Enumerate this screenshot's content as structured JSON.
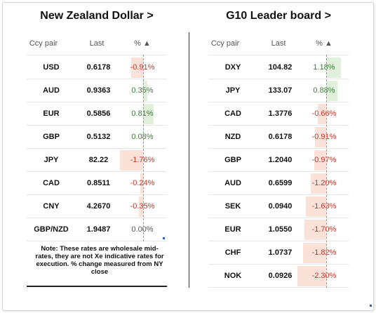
{
  "nzd_panel": {
    "title": "New Zealand Dollar >",
    "headers": {
      "pair": "Ccy pair",
      "last": "Last",
      "pct": "% ▲"
    },
    "rows": [
      {
        "pair": "USD",
        "last": "0.6178",
        "pct": "-0.91%",
        "change": -0.91
      },
      {
        "pair": "AUD",
        "last": "0.9363",
        "pct": "0.35%",
        "change": 0.35
      },
      {
        "pair": "EUR",
        "last": "0.5856",
        "pct": "0.81%",
        "change": 0.81
      },
      {
        "pair": "GBP",
        "last": "0.5132",
        "pct": "0.08%",
        "change": 0.08
      },
      {
        "pair": "JPY",
        "last": "82.22",
        "pct": "-1.76%",
        "change": -1.76
      },
      {
        "pair": "CAD",
        "last": "0.8511",
        "pct": "-0.24%",
        "change": -0.24
      },
      {
        "pair": "CNY",
        "last": "4.2670",
        "pct": "-0.35%",
        "change": -0.35
      },
      {
        "pair": "GBP/NZD",
        "last": "1.9487",
        "pct": "0.00%",
        "change": 0.0
      }
    ],
    "note": "Note: These rates are wholesale mid-rates, they are not Xe indicative rates for execution. % change measured from NY close"
  },
  "g10_panel": {
    "title": "G10 Leader board >",
    "headers": {
      "pair": "Ccy pair",
      "last": "Last",
      "pct": "% ▲"
    },
    "rows": [
      {
        "pair": "DXY",
        "last": "104.82",
        "pct": "1.18%",
        "change": 1.18
      },
      {
        "pair": "JPY",
        "last": "133.07",
        "pct": "0.88%",
        "change": 0.88
      },
      {
        "pair": "CAD",
        "last": "1.3776",
        "pct": "-0.66%",
        "change": -0.66
      },
      {
        "pair": "NZD",
        "last": "0.6178",
        "pct": "-0.91%",
        "change": -0.91
      },
      {
        "pair": "GBP",
        "last": "1.2040",
        "pct": "-0.97%",
        "change": -0.97
      },
      {
        "pair": "AUD",
        "last": "0.6599",
        "pct": "-1.20%",
        "change": -1.2
      },
      {
        "pair": "SEK",
        "last": "0.0940",
        "pct": "-1.63%",
        "change": -1.63
      },
      {
        "pair": "EUR",
        "last": "1.0550",
        "pct": "-1.70%",
        "change": -1.7
      },
      {
        "pair": "CHF",
        "last": "1.0737",
        "pct": "-1.82%",
        "change": -1.82
      },
      {
        "pair": "NOK",
        "last": "0.0926",
        "pct": "-2.30%",
        "change": -2.3
      }
    ]
  },
  "colors": {
    "negative_text": "#c0392b",
    "positive_text": "#3a7d3a",
    "negative_bar": "#fbe2d9",
    "positive_bar": "#e1f0da"
  }
}
